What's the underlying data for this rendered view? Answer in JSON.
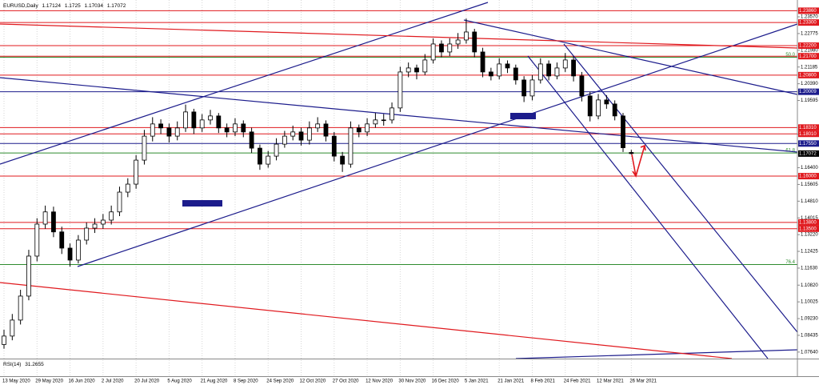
{
  "chart_data": {
    "type": "candlestick",
    "title": "EURUSD,Daily",
    "up_color": "#ffffff",
    "down_color": "#000000",
    "categories": [
      "13 May 2020",
      null,
      null,
      null,
      "29 May 2020",
      null,
      null,
      null,
      "16 Jun 2020",
      null,
      null,
      null,
      "2 Jul 2020",
      null,
      null,
      null,
      "20 Jul 2020",
      null,
      null,
      null,
      "5 Aug 2020",
      null,
      null,
      null,
      "21 Aug 2020",
      null,
      null,
      null,
      "8 Sep 2020",
      null,
      null,
      null,
      "24 Sep 2020",
      null,
      null,
      null,
      "12 Oct 2020",
      null,
      null,
      null,
      "27 Oct 2020",
      null,
      null,
      null,
      "12 Nov 2020",
      null,
      null,
      null,
      "30 Nov 2020",
      null,
      null,
      null,
      "16 Dec 2020",
      null,
      null,
      null,
      "5 Jan 2021",
      null,
      null,
      null,
      "21 Jan 2021",
      null,
      null,
      null,
      "8 Feb 2021",
      null,
      null,
      null,
      "24 Feb 2021",
      null,
      null,
      null,
      "12 Mar 2021",
      null,
      null,
      null,
      "26 Mar 2021"
    ],
    "candles": [
      [
        1.08,
        1.087,
        1.078,
        1.084
      ],
      [
        1.084,
        1.0945,
        1.082,
        1.0916
      ],
      [
        1.0916,
        1.106,
        1.0895,
        1.103
      ],
      [
        1.103,
        1.125,
        1.101,
        1.122
      ],
      [
        1.122,
        1.14,
        1.1195,
        1.1372
      ],
      [
        1.1372,
        1.146,
        1.135,
        1.143
      ],
      [
        1.143,
        1.1455,
        1.131,
        1.1335
      ],
      [
        1.1335,
        1.136,
        1.123,
        1.1258
      ],
      [
        1.1258,
        1.128,
        1.117,
        1.1201
      ],
      [
        1.1201,
        1.132,
        1.1185,
        1.1296
      ],
      [
        1.1296,
        1.138,
        1.1275,
        1.1353
      ],
      [
        1.1353,
        1.14,
        1.133,
        1.1372
      ],
      [
        1.1372,
        1.142,
        1.135,
        1.1391
      ],
      [
        1.1391,
        1.146,
        1.137,
        1.143
      ],
      [
        1.143,
        1.155,
        1.141,
        1.1524
      ],
      [
        1.1524,
        1.159,
        1.15,
        1.1562
      ],
      [
        1.1562,
        1.17,
        1.154,
        1.1676
      ],
      [
        1.1676,
        1.182,
        1.1655,
        1.179
      ],
      [
        1.179,
        1.188,
        1.1765,
        1.1848
      ],
      [
        1.1848,
        1.187,
        1.18,
        1.1829
      ],
      [
        1.1829,
        1.185,
        1.176,
        1.179
      ],
      [
        1.179,
        1.186,
        1.177,
        1.1829
      ],
      [
        1.1829,
        1.194,
        1.181,
        1.1905
      ],
      [
        1.1905,
        1.192,
        1.18,
        1.1829
      ],
      [
        1.1829,
        1.1895,
        1.181,
        1.1867
      ],
      [
        1.1867,
        1.1915,
        1.1845,
        1.1886
      ],
      [
        1.1886,
        1.19,
        1.1805,
        1.1829
      ],
      [
        1.1829,
        1.185,
        1.1785,
        1.181
      ],
      [
        1.181,
        1.1875,
        1.179,
        1.1848
      ],
      [
        1.1848,
        1.1865,
        1.1785,
        1.181
      ],
      [
        1.181,
        1.183,
        1.171,
        1.1733
      ],
      [
        1.1733,
        1.175,
        1.163,
        1.1657
      ],
      [
        1.1657,
        1.172,
        1.164,
        1.1695
      ],
      [
        1.1695,
        1.178,
        1.1675,
        1.1752
      ],
      [
        1.1752,
        1.1815,
        1.1735,
        1.179
      ],
      [
        1.179,
        1.184,
        1.177,
        1.181
      ],
      [
        1.181,
        1.183,
        1.1745,
        1.1771
      ],
      [
        1.1771,
        1.186,
        1.175,
        1.1829
      ],
      [
        1.1829,
        1.188,
        1.181,
        1.1848
      ],
      [
        1.1848,
        1.1865,
        1.1765,
        1.179
      ],
      [
        1.179,
        1.181,
        1.167,
        1.1695
      ],
      [
        1.1695,
        1.1715,
        1.162,
        1.1657
      ],
      [
        1.1657,
        1.186,
        1.164,
        1.1829
      ],
      [
        1.1829,
        1.1845,
        1.1785,
        1.181
      ],
      [
        1.181,
        1.1875,
        1.179,
        1.1848
      ],
      [
        1.1848,
        1.19,
        1.183,
        1.1867
      ],
      [
        1.1867,
        1.1895,
        1.184,
        1.1867
      ],
      [
        1.1867,
        1.195,
        1.185,
        1.1924
      ],
      [
        1.1924,
        1.212,
        1.1905,
        1.2095
      ],
      [
        1.2095,
        1.214,
        1.207,
        1.2114
      ],
      [
        1.2114,
        1.213,
        1.206,
        1.2095
      ],
      [
        1.2095,
        1.218,
        1.208,
        1.2152
      ],
      [
        1.2152,
        1.2255,
        1.2135,
        1.2228
      ],
      [
        1.2228,
        1.2245,
        1.2165,
        1.219
      ],
      [
        1.219,
        1.2255,
        1.217,
        1.2228
      ],
      [
        1.2228,
        1.228,
        1.2205,
        1.2247
      ],
      [
        1.2247,
        1.2349,
        1.223,
        1.2285
      ],
      [
        1.2285,
        1.23,
        1.2165,
        1.219
      ],
      [
        1.219,
        1.221,
        1.207,
        1.2095
      ],
      [
        1.2095,
        1.2115,
        1.2055,
        1.2076
      ],
      [
        1.2076,
        1.216,
        1.206,
        1.2133
      ],
      [
        1.2133,
        1.215,
        1.209,
        1.2114
      ],
      [
        1.2114,
        1.213,
        1.2035,
        1.2057
      ],
      [
        1.2057,
        1.2075,
        1.1952,
        1.1981
      ],
      [
        1.1981,
        1.208,
        1.196,
        1.2057
      ],
      [
        1.2057,
        1.216,
        1.204,
        1.2133
      ],
      [
        1.2133,
        1.215,
        1.2055,
        1.2076
      ],
      [
        1.2076,
        1.214,
        1.206,
        1.2114
      ],
      [
        1.2114,
        1.2185,
        1.2095,
        1.2152
      ],
      [
        1.2152,
        1.217,
        1.205,
        1.2076
      ],
      [
        1.2076,
        1.2095,
        1.1955,
        1.1981
      ],
      [
        1.1981,
        1.2,
        1.186,
        1.1886
      ],
      [
        1.1886,
        1.199,
        1.187,
        1.1962
      ],
      [
        1.1962,
        1.1985,
        1.192,
        1.1943
      ],
      [
        1.1943,
        1.196,
        1.1865,
        1.1886
      ],
      [
        1.1886,
        1.19,
        1.1715,
        1.1735
      ],
      [
        1.17124,
        1.1725,
        1.17034,
        1.17072
      ]
    ],
    "ylim": [
      1.0733,
      1.2437
    ],
    "yticks": [
      {
        "value": 1.2357,
        "label": "1.23570"
      },
      {
        "value": 1.22775,
        "label": "1.22775"
      },
      {
        "value": 1.2198,
        "label": "1.21980"
      },
      {
        "value": 1.21185,
        "label": "1.21185"
      },
      {
        "value": 1.2039,
        "label": "1.20390"
      },
      {
        "value": 1.19595,
        "label": "1.19595"
      },
      {
        "value": 1.1799,
        "label": "1.17990"
      },
      {
        "value": 1.164,
        "label": "1.16400"
      },
      {
        "value": 1.15605,
        "label": "1.15605"
      },
      {
        "value": 1.1481,
        "label": "1.14810"
      },
      {
        "value": 1.14015,
        "label": "1.14015"
      },
      {
        "value": 1.1322,
        "label": "1.13220"
      },
      {
        "value": 1.12425,
        "label": "1.12425"
      },
      {
        "value": 1.1163,
        "label": "1.11630"
      },
      {
        "value": 1.1082,
        "label": "1.10820"
      },
      {
        "value": 1.10025,
        "label": "1.10025"
      },
      {
        "value": 1.0923,
        "label": "1.09230"
      },
      {
        "value": 1.08435,
        "label": "1.08435"
      },
      {
        "value": 1.0764,
        "label": "1.07640"
      }
    ],
    "levels": [
      {
        "price": {
          "value": 1.2386,
          "label": "1.23860"
        },
        "color": "#e0191e"
      },
      {
        "price": {
          "value": 1.233,
          "label": "1.23300"
        },
        "color": "#e0191e"
      },
      {
        "price": {
          "value": 1.222,
          "label": "1.22200"
        },
        "color": "#e0191e"
      },
      {
        "price": {
          "value": 1.217,
          "label": "1.21700"
        },
        "color": "#e0191e"
      },
      {
        "price": {
          "value": 1.208,
          "label": "1.20800"
        },
        "color": "#e0191e"
      },
      {
        "price": {
          "value": 1.20009,
          "label": "1.20009"
        },
        "color": "#1c1c8c"
      },
      {
        "price": {
          "value": 1.1831,
          "label": "1.18310"
        },
        "color": "#e0191e"
      },
      {
        "price": {
          "value": 1.1801,
          "label": "1.18010"
        },
        "color": "#e0191e"
      },
      {
        "price": {
          "value": 1.1755,
          "label": "1.17550"
        },
        "color": "#1c1c8c"
      },
      {
        "price": {
          "value": 1.16,
          "label": "1.16000"
        },
        "color": "#e0191e"
      },
      {
        "price": {
          "value": 1.138,
          "label": "1.13800"
        },
        "color": "#e0191e"
      },
      {
        "price": {
          "value": 1.135,
          "label": "1.13500"
        },
        "color": "#e0191e"
      }
    ],
    "fib_levels": [
      {
        "price": 1.2165,
        "ratio": {
          "value": 50,
          "label": "50.0"
        }
      },
      {
        "price": 1.171,
        "ratio": 61.8
      },
      {
        "price": 1.118,
        "ratio": 76.4
      }
    ],
    "fib_color": "#2e8b2e",
    "indicator": {
      "name": "RSI(14)",
      "value": 31.2655
    }
  }
}
